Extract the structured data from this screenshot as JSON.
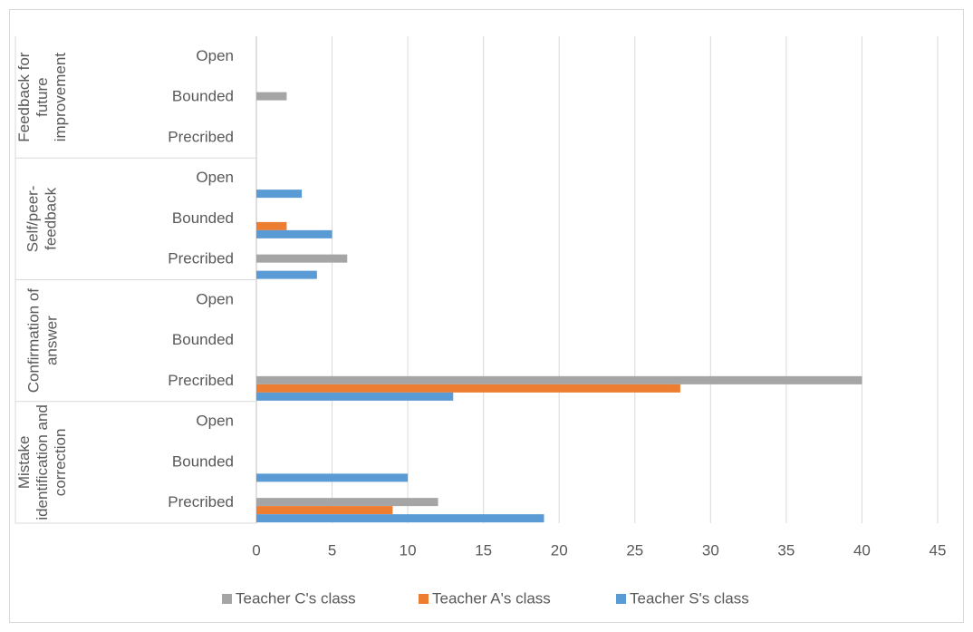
{
  "chart_data": {
    "type": "bar",
    "orientation": "horizontal",
    "groups": [
      "Mistake identification and correction",
      "Confirmation of answer",
      "Self/peer-feedback",
      "Feedback for future improvement"
    ],
    "categories": [
      "Precribed",
      "Bounded",
      "Open",
      "Precribed",
      "Bounded",
      "Open",
      "Precribed",
      "Bounded",
      "Open",
      "Precribed",
      "Bounded",
      "Open"
    ],
    "series": [
      {
        "name": "Teacher C's class",
        "color": "#a5a5a5",
        "values": [
          12,
          0,
          0,
          40,
          0,
          0,
          6,
          0,
          0,
          0,
          2,
          0
        ]
      },
      {
        "name": "Teacher A's class",
        "color": "#ed7d31",
        "values": [
          9,
          0,
          0,
          28,
          0,
          0,
          0,
          2,
          0,
          0,
          0,
          0
        ]
      },
      {
        "name": "Teacher S's class",
        "color": "#5b9bd5",
        "values": [
          19,
          10,
          0,
          13,
          0,
          0,
          4,
          5,
          3,
          0,
          0,
          0
        ]
      }
    ],
    "xlim": [
      0,
      45
    ],
    "xticks": [
      0,
      5,
      10,
      15,
      20,
      25,
      30,
      35,
      40,
      45
    ],
    "grid": true,
    "legend": "bottom"
  }
}
